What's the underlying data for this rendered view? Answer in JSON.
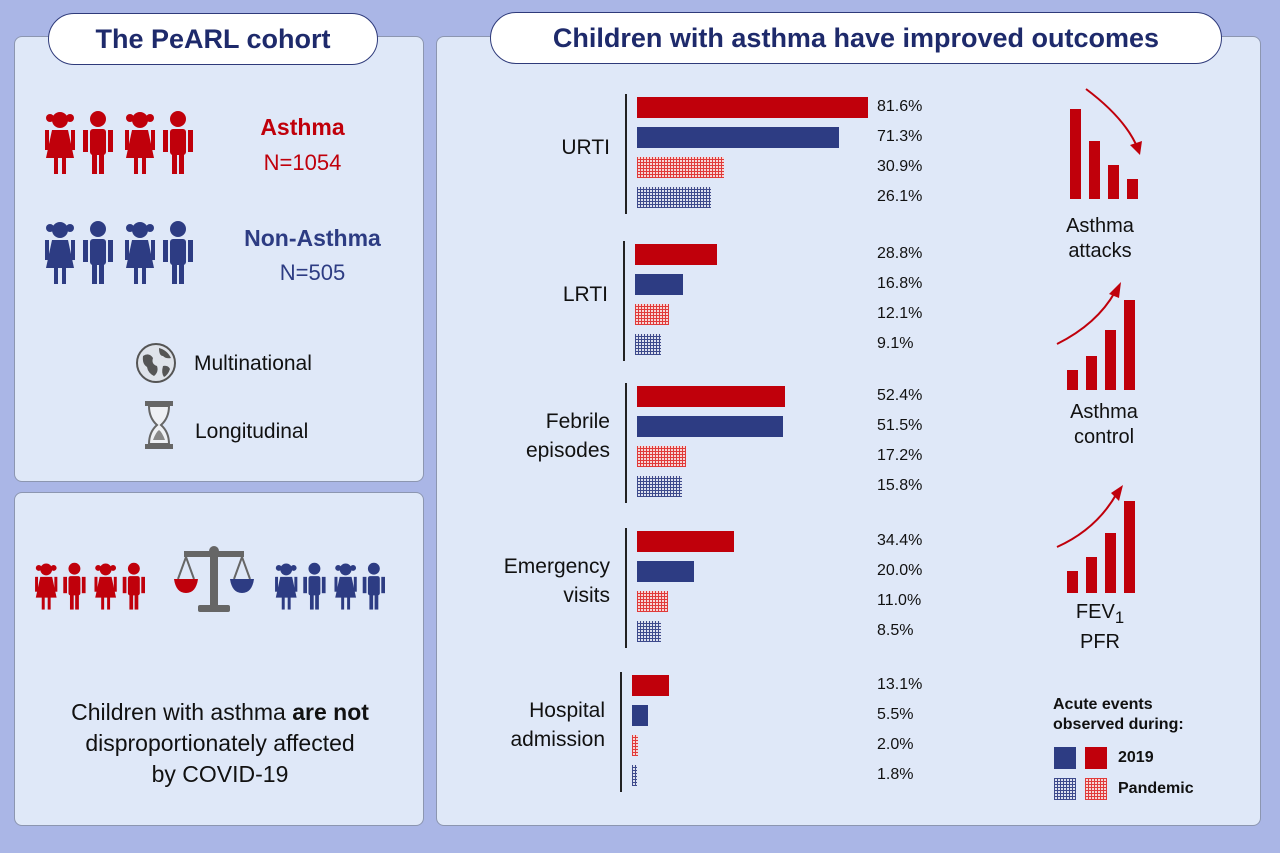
{
  "left_panel": {
    "title": "The PeARL cohort",
    "asthma_label": "Asthma",
    "asthma_n": "N=1054",
    "non_asthma_label": "Non-Asthma",
    "non_asthma_n": "N=505",
    "feature_1": "Multinational",
    "feature_2": "Longitudinal",
    "icon_1": "globe-icon",
    "icon_2": "hourglass-icon"
  },
  "bottom_panel": {
    "statement_part1": "Children with asthma ",
    "statement_bold": "are not",
    "statement_part2": "disproportionately affected",
    "statement_part3": "by COVID-19",
    "icon": "balance-scale-icon"
  },
  "colors": {
    "asthma_red": "#c0000b",
    "non_asthma_blue": "#2d3c83"
  },
  "chart_data": {
    "type": "bar",
    "orientation": "horizontal",
    "title": "Children with asthma have improved outcomes",
    "categories": [
      "URTI",
      "LRTI",
      "Febrile\nepisodes",
      "Emergency\nvisits",
      "Hospital\nadmission"
    ],
    "series": [
      {
        "group": "Asthma",
        "period": "2019",
        "values": [
          81.6,
          28.8,
          52.4,
          34.4,
          13.1
        ]
      },
      {
        "group": "Non-Asthma",
        "period": "2019",
        "values": [
          71.3,
          16.8,
          51.5,
          20.0,
          5.5
        ]
      },
      {
        "group": "Asthma",
        "period": "Pandemic",
        "values": [
          30.9,
          12.1,
          17.2,
          11.0,
          2.0
        ]
      },
      {
        "group": "Non-Asthma",
        "period": "Pandemic",
        "values": [
          26.1,
          9.1,
          15.8,
          8.5,
          1.8
        ]
      }
    ],
    "labels": [
      [
        "81.6%",
        "71.3%",
        "30.9%",
        "26.1%"
      ],
      [
        "28.8%",
        "16.8%",
        "12.1%",
        "9.1%"
      ],
      [
        "52.4%",
        "51.5%",
        "17.2%",
        "15.8%"
      ],
      [
        "34.4%",
        "20.0%",
        "11.0%",
        "8.5%"
      ],
      [
        "13.1%",
        "5.5%",
        "2.0%",
        "1.8%"
      ]
    ],
    "legend": {
      "title_line1": "Acute events",
      "title_line2": "observed during:",
      "entries": [
        "2019",
        "Pandemic"
      ],
      "placement": "bottom-right"
    }
  },
  "outcomes": [
    {
      "line1": "Asthma",
      "line2": "attacks",
      "trend": "decreasing"
    },
    {
      "line1": "Asthma",
      "line2": "control",
      "trend": "increasing"
    },
    {
      "line1": "FEV",
      "sub": "1",
      "line2": "PFR",
      "trend": "increasing"
    }
  ]
}
